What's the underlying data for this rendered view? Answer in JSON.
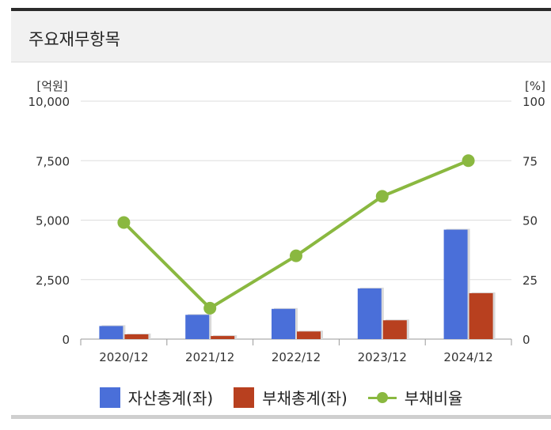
{
  "panel": {
    "title": "주요재무항목"
  },
  "chart_data": {
    "type": "bar",
    "categories": [
      "2020/12",
      "2021/12",
      "2022/12",
      "2023/12",
      "2024/12"
    ],
    "series": [
      {
        "name": "자산총계(좌)",
        "type": "bar",
        "axis": "left",
        "color": "#4a6fd9",
        "values": [
          550,
          1020,
          1270,
          2130,
          4600
        ]
      },
      {
        "name": "부채총계(좌)",
        "type": "bar",
        "axis": "left",
        "color": "#b8401f",
        "values": [
          200,
          130,
          320,
          790,
          1930
        ]
      },
      {
        "name": "부채비율",
        "type": "line",
        "axis": "right",
        "color": "#8ab840",
        "values": [
          49,
          13,
          35,
          60,
          75
        ]
      }
    ],
    "y_left": {
      "unit": "[억원]",
      "ylim": [
        0,
        10000
      ],
      "ticks": [
        0,
        2500,
        5000,
        7500,
        10000
      ],
      "tick_labels": [
        "0",
        "2,500",
        "5,000",
        "7,500",
        "10,000"
      ]
    },
    "y_right": {
      "unit": "[%]",
      "ylim": [
        0,
        100
      ],
      "ticks": [
        0,
        25,
        50,
        75,
        100
      ],
      "tick_labels": [
        "0",
        "25",
        "50",
        "75",
        "100"
      ]
    },
    "grid": true,
    "legend_position": "bottom"
  }
}
